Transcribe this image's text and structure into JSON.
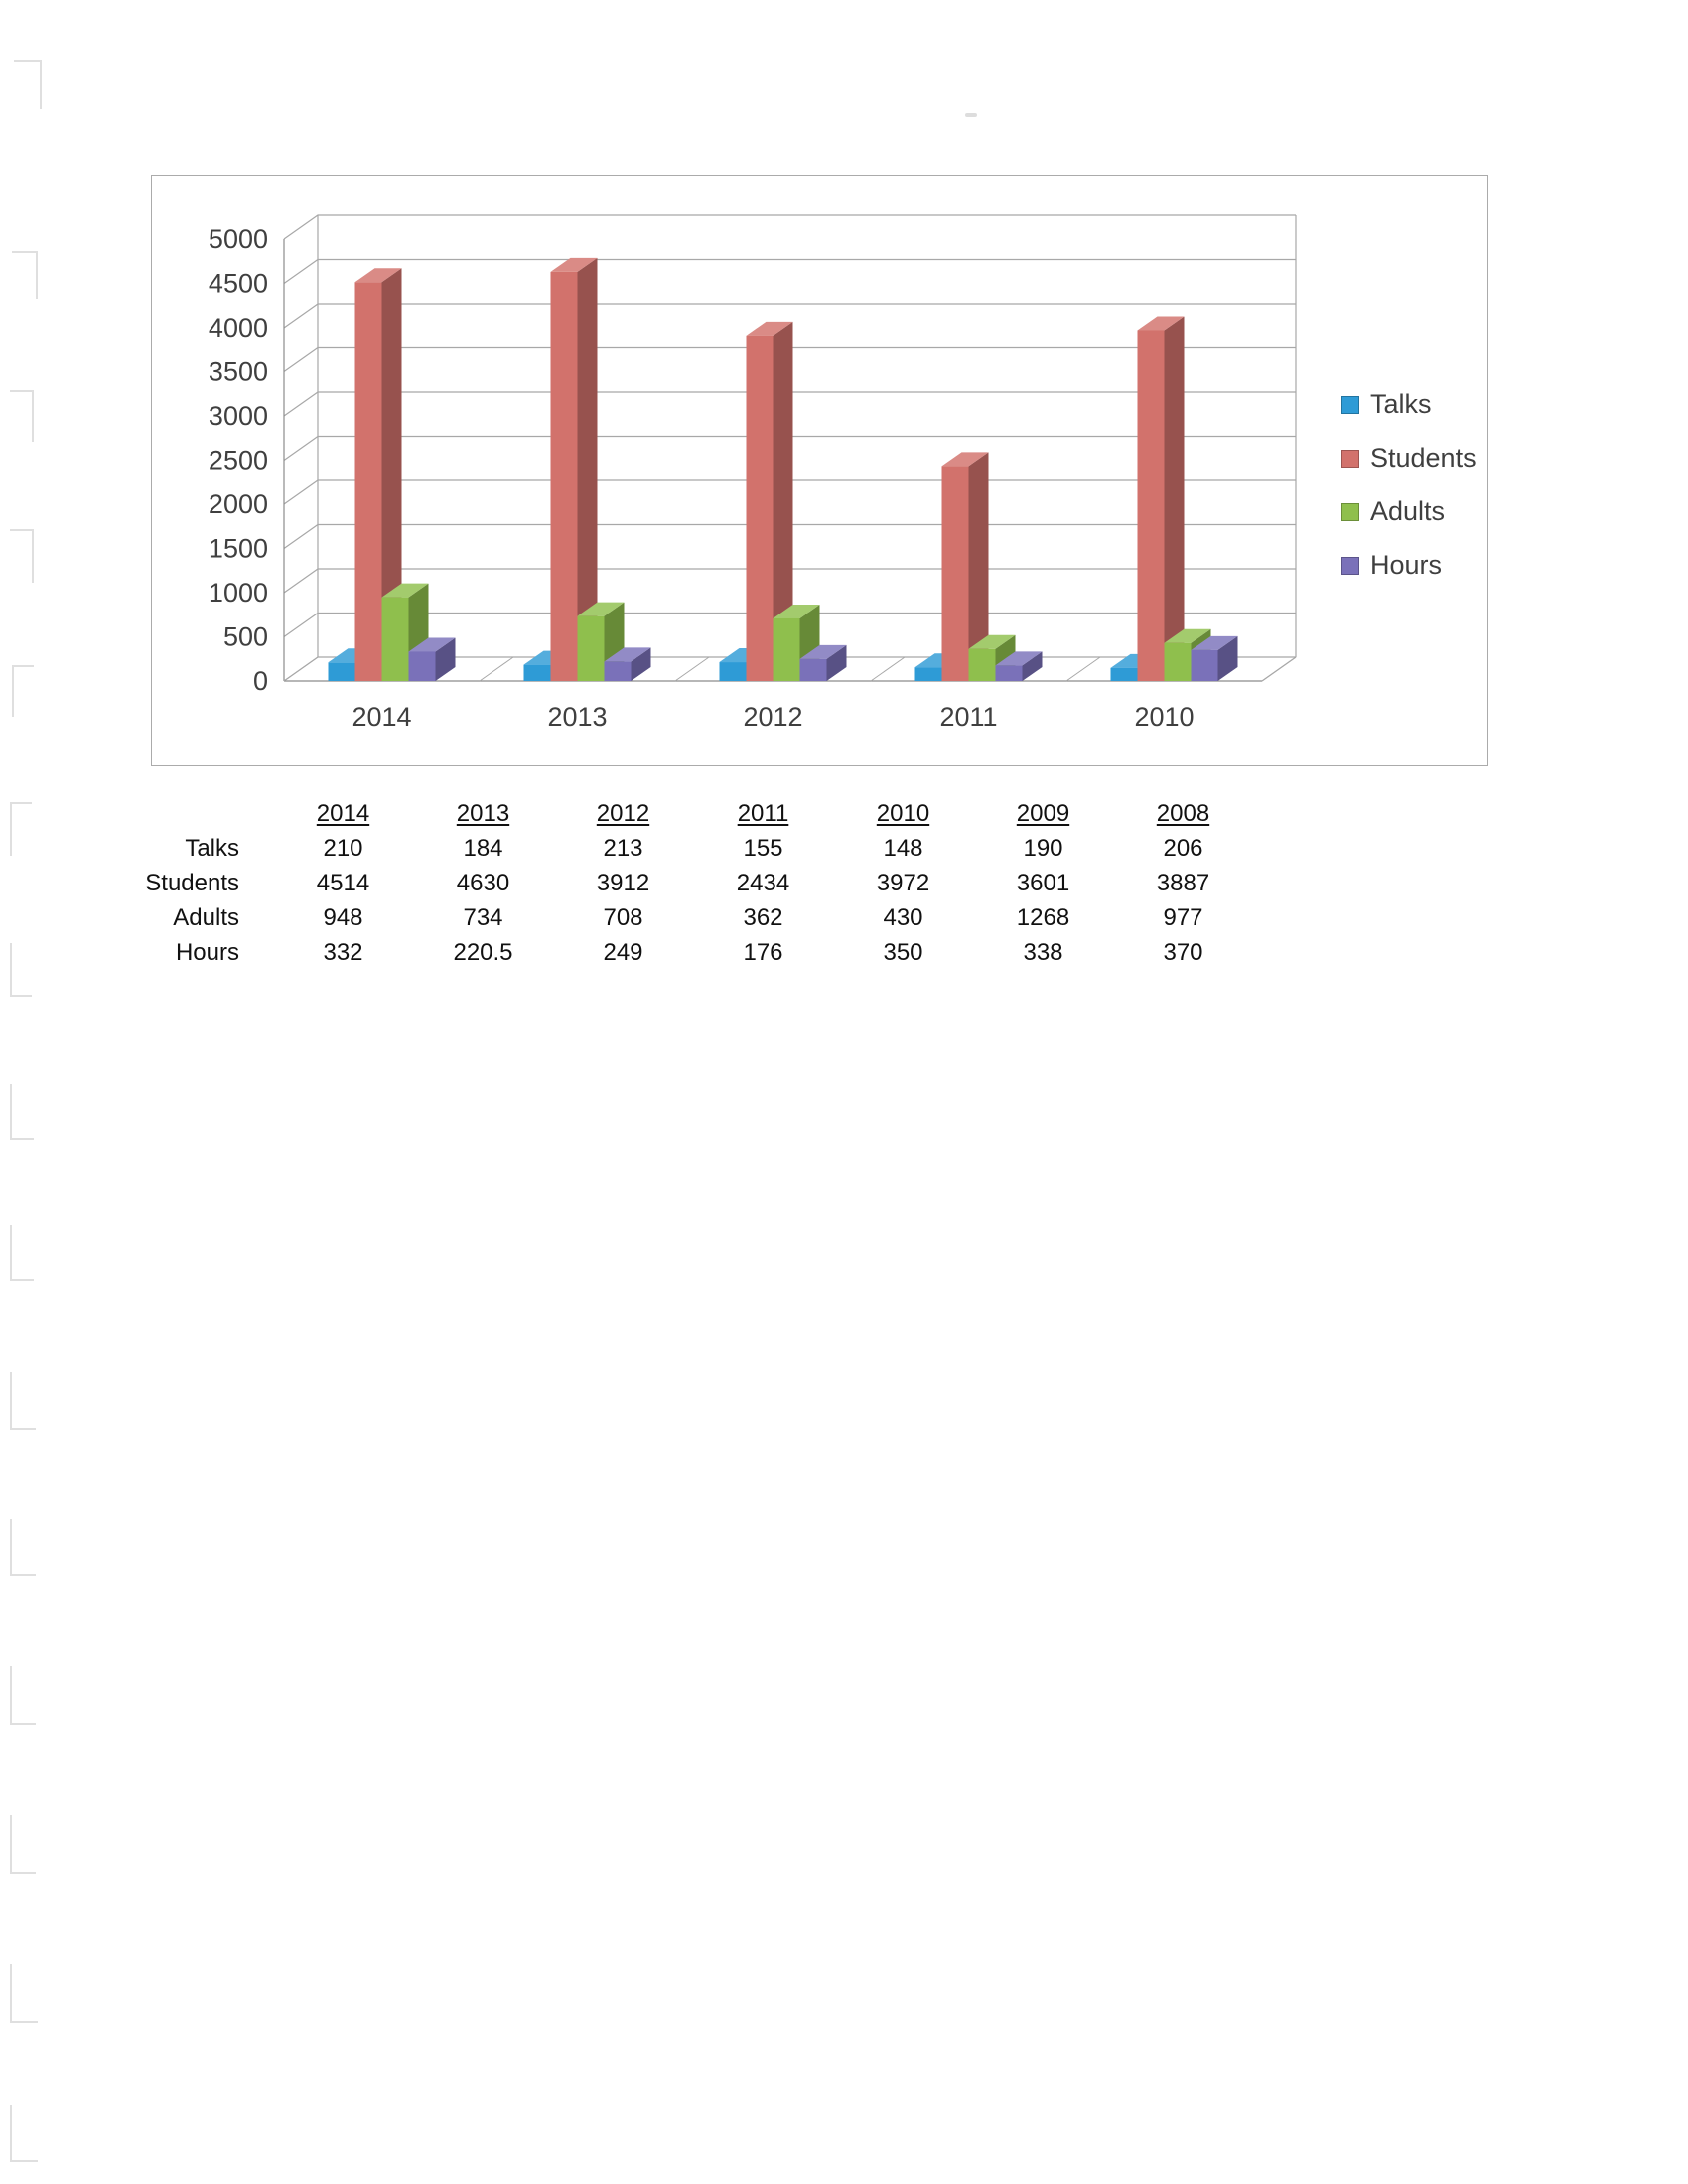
{
  "chart_data": {
    "type": "bar",
    "effect": "3d",
    "title": "",
    "xlabel": "",
    "ylabel": "",
    "categories": [
      "2014",
      "2013",
      "2012",
      "2011",
      "2010"
    ],
    "series": [
      {
        "name": "Talks",
        "color": "#2E9BD6",
        "values": [
          210,
          184,
          213,
          155,
          148
        ]
      },
      {
        "name": "Students",
        "color": "#D2726C",
        "values": [
          4514,
          4630,
          3912,
          2434,
          3972
        ]
      },
      {
        "name": "Adults",
        "color": "#8FBF4D",
        "values": [
          948,
          734,
          708,
          362,
          430
        ]
      },
      {
        "name": "Hours",
        "color": "#7A71B9",
        "values": [
          332,
          220.5,
          249,
          176,
          350
        ]
      }
    ],
    "ylim": [
      0,
      5000
    ],
    "ytick_step": 500,
    "grid": true,
    "legend_position": "right",
    "grid_color": "#a8a8a8",
    "axis_text_color": "#3f3f3f"
  },
  "table": {
    "years": [
      "2014",
      "2013",
      "2012",
      "2011",
      "2010",
      "2009",
      "2008"
    ],
    "rows": [
      {
        "label": "Talks",
        "values": [
          "210",
          "184",
          "213",
          "155",
          "148",
          "190",
          "206"
        ]
      },
      {
        "label": "Students",
        "values": [
          "4514",
          "4630",
          "3912",
          "2434",
          "3972",
          "3601",
          "3887"
        ]
      },
      {
        "label": "Adults",
        "values": [
          "948",
          "734",
          "708",
          "362",
          "430",
          "1268",
          "977"
        ]
      },
      {
        "label": "Hours",
        "values": [
          "332",
          "220.5",
          "249",
          "176",
          "350",
          "338",
          "370"
        ]
      }
    ]
  }
}
